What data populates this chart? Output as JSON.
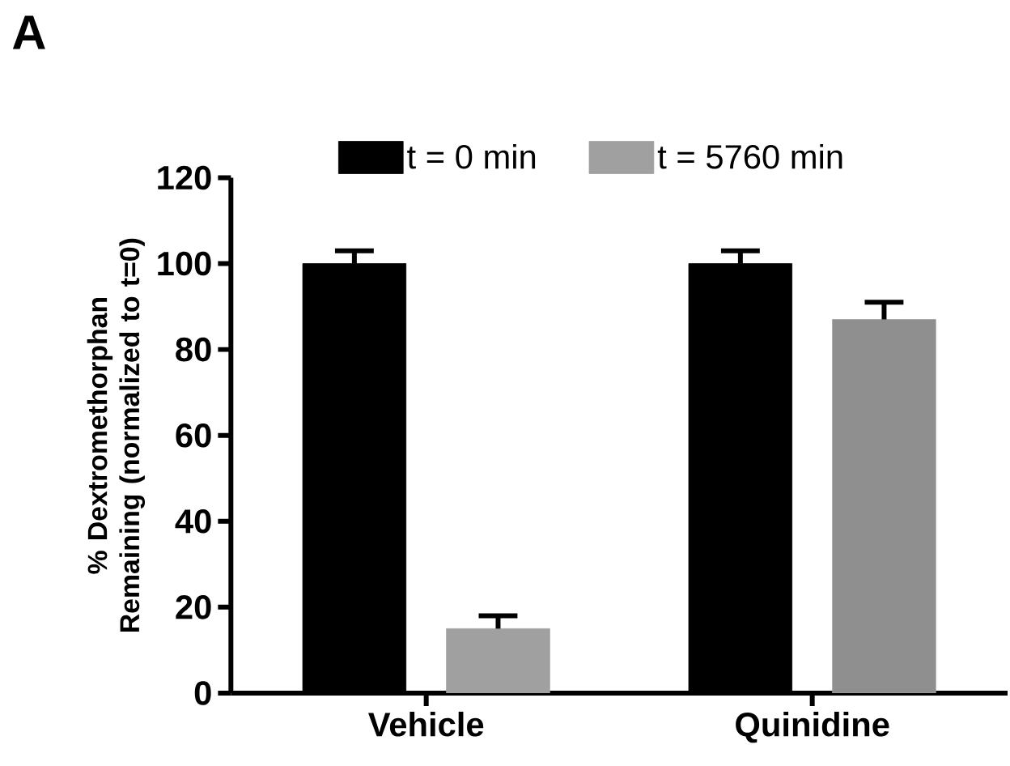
{
  "chart_data": {
    "type": "bar",
    "ylabel": "% Dextromethorphan Remaining (normalized to t=0)",
    "categories": [
      "Vehicle",
      "Quinidine"
    ],
    "series": [
      {
        "name": "t = 0 min",
        "color": "#000000",
        "values": [
          100,
          100
        ],
        "errors": [
          [
            100,
            103
          ],
          [
            100,
            103
          ]
        ]
      },
      {
        "name": "t = 5760 min",
        "color": "#a0a0a0",
        "colors": [
          "#a0a0a0",
          "#8f8f8f"
        ],
        "values": [
          15,
          87
        ],
        "errors": [
          [
            15,
            18
          ],
          [
            87,
            91
          ]
        ]
      }
    ],
    "ylim": [
      0,
      120
    ],
    "yticks": [
      0,
      20,
      40,
      60,
      80,
      100,
      120
    ],
    "legend": "top",
    "grid": false,
    "annotations": [
      "A"
    ]
  }
}
